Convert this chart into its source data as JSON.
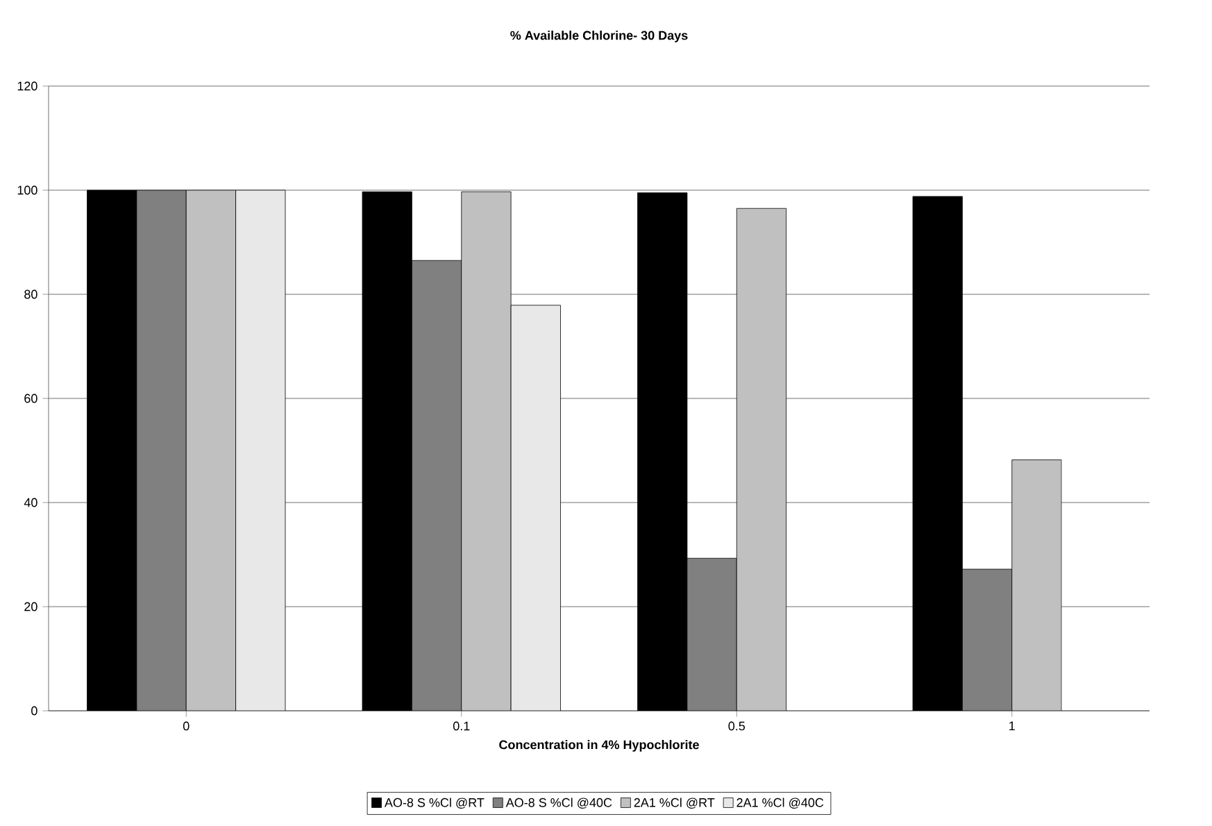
{
  "chart_data": {
    "type": "bar",
    "title": "% Available Chlorine- 30 Days",
    "xlabel": "Concentration in 4% Hypochlorite",
    "categories": [
      "0",
      "0.1",
      "0.5",
      "1"
    ],
    "series": [
      {
        "name": "AO-8 S %Cl @RT",
        "color": "#000000",
        "values": [
          100,
          99.7,
          99.5,
          98.8
        ]
      },
      {
        "name": "AO-8 S %Cl @40C",
        "color": "#808080",
        "values": [
          100,
          86.5,
          29.3,
          27.2
        ]
      },
      {
        "name": "2A1 %Cl @RT",
        "color": "#c0c0c0",
        "values": [
          100,
          99.7,
          96.5,
          48.2
        ]
      },
      {
        "name": "2A1 %Cl @40C",
        "color": "#e8e8e8",
        "values": [
          100,
          77.9,
          null,
          null
        ]
      }
    ],
    "ylim": [
      0,
      120
    ],
    "yticks": [
      0,
      20,
      40,
      60,
      80,
      100,
      120
    ],
    "grid": "y",
    "legend": "bottom"
  }
}
